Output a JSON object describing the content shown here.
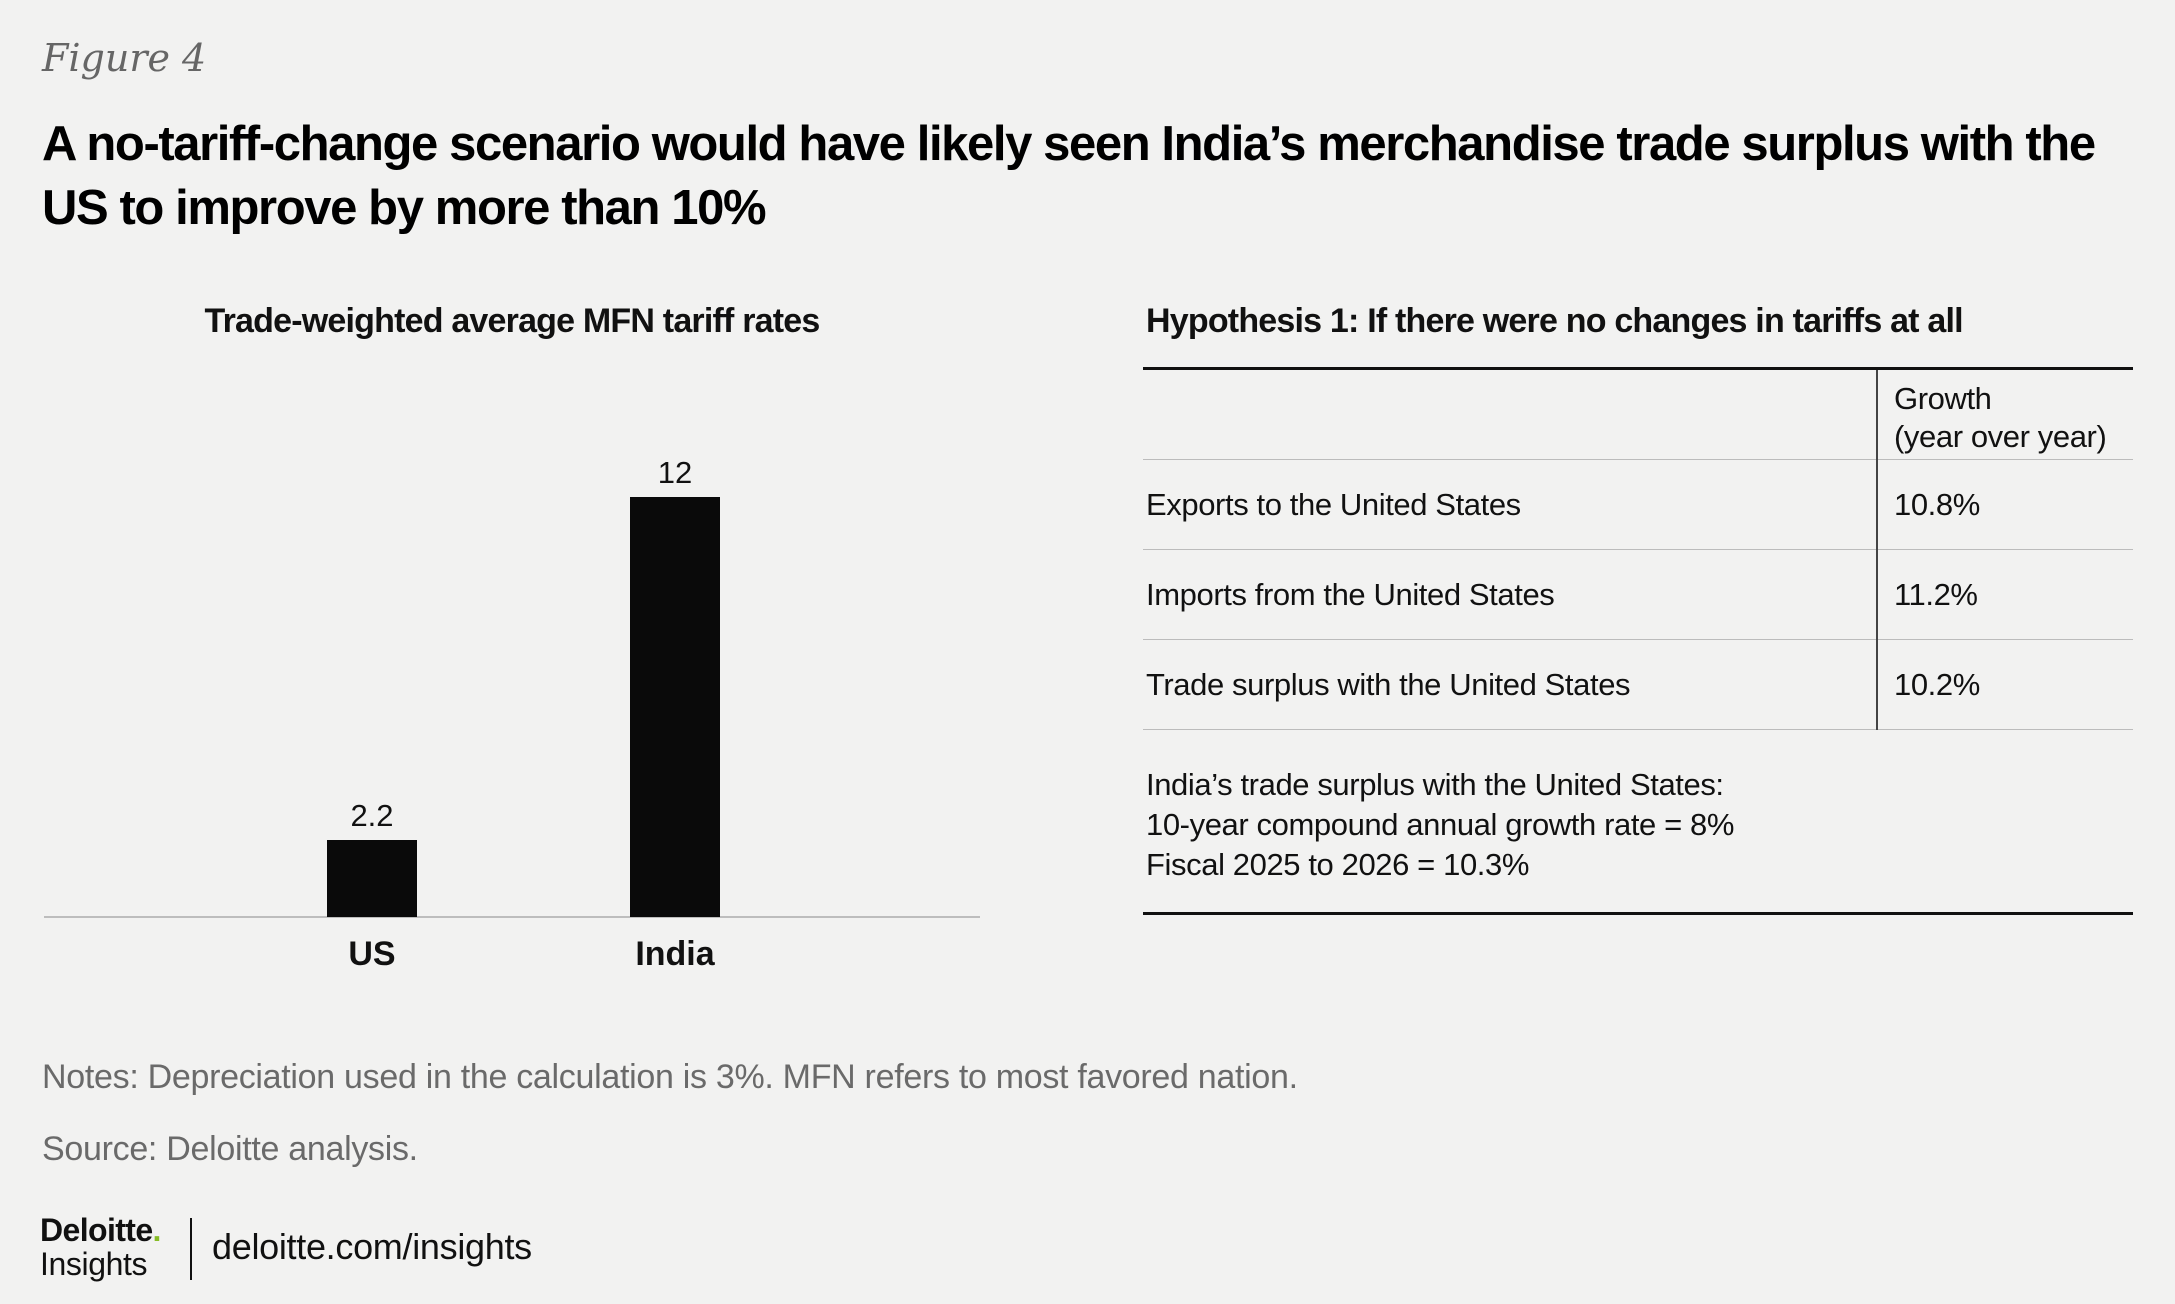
{
  "figure_label": "Figure 4",
  "title": "A no-tariff-change scenario would have likely seen India’s merchandise trade surplus with the US to improve by more than 10%",
  "chart_data": {
    "type": "bar",
    "title": "Trade-weighted average MFN tariff rates",
    "categories": [
      "US",
      "India"
    ],
    "values": [
      2.2,
      12
    ],
    "data_labels": [
      "2.2",
      "12"
    ],
    "ylim": [
      0,
      12
    ],
    "grid": false,
    "bar_color": "#0a0a0a"
  },
  "table": {
    "title": "Hypothesis 1: If there were no changes in tariffs at all",
    "header_line1": "Growth",
    "header_line2": "(year over year)",
    "rows": [
      {
        "label": "Exports to the United States",
        "value": "10.8%"
      },
      {
        "label": "Imports from the United States",
        "value": "11.2%"
      },
      {
        "label": "Trade surplus with the United States",
        "value": "10.2%"
      }
    ],
    "summary": [
      "India’s trade surplus with the United States:",
      "10-year compound annual growth rate = 8%",
      "Fiscal 2025 to 2026 = 10.3%"
    ]
  },
  "notes": "Notes: Depreciation used in the calculation is 3%. MFN refers to most favored nation.",
  "source": "Source: Deloitte analysis.",
  "footer": {
    "logo_name": "Deloitte",
    "logo_dot": ".",
    "logo_sub": "Insights",
    "url": "deloitte.com/insights",
    "accent_color": "#86bc25"
  }
}
